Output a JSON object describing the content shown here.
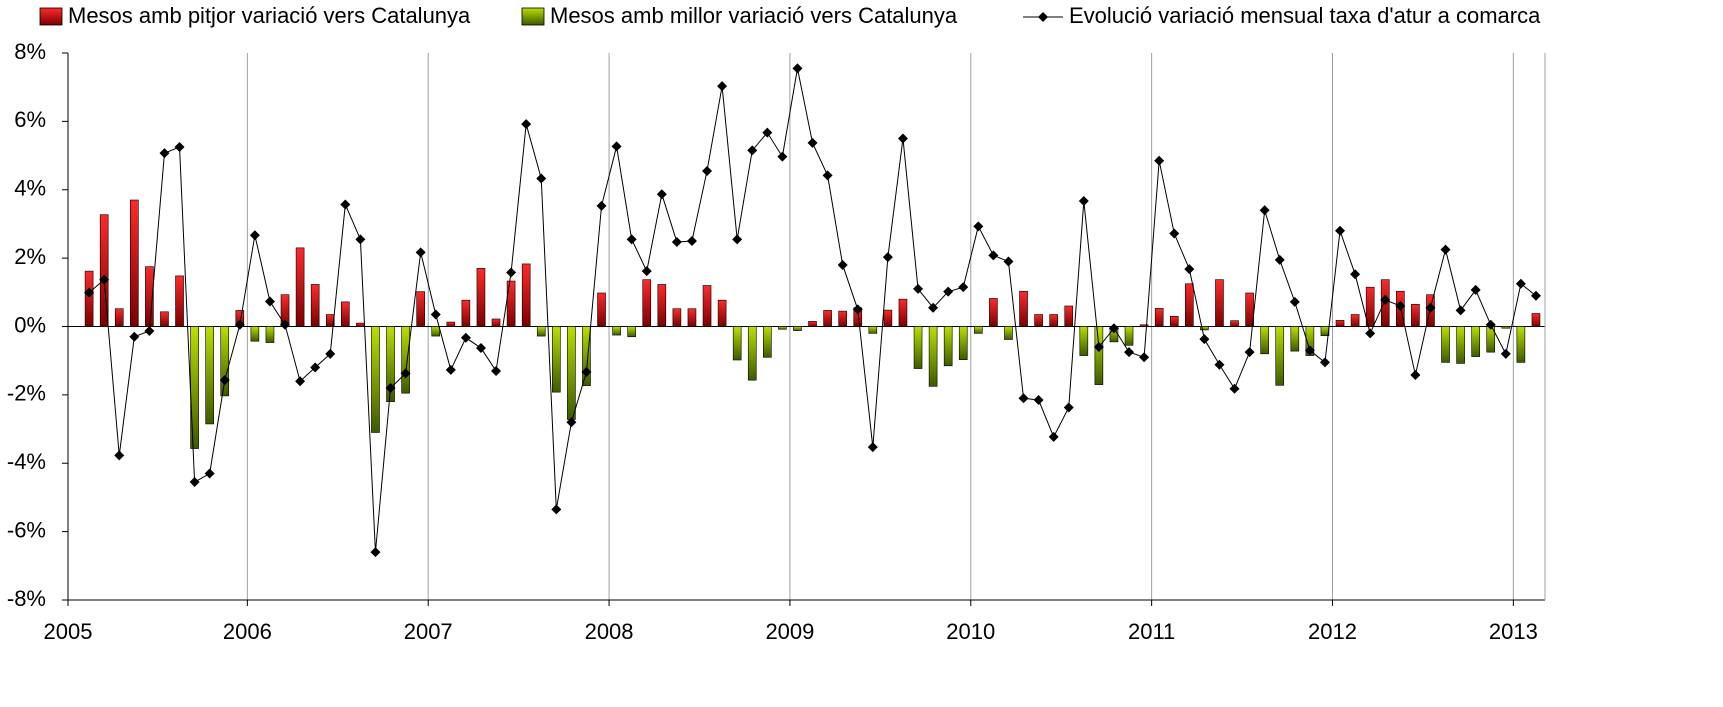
{
  "chart_data": {
    "type": "bar_line",
    "year_labels": [
      "2005",
      "2006",
      "2007",
      "2008",
      "2009",
      "2010",
      "2011",
      "2012",
      "2013"
    ],
    "ylim": [
      -8,
      8
    ],
    "yticks": [
      {
        "value": -8,
        "label": "-8%"
      },
      {
        "value": -6,
        "label": "-6%"
      },
      {
        "value": -4,
        "label": "-4%"
      },
      {
        "value": -2,
        "label": "-2%"
      },
      {
        "value": 0,
        "label": "0%"
      },
      {
        "value": 2,
        "label": "2%"
      },
      {
        "value": 4,
        "label": "4%"
      },
      {
        "value": 6,
        "label": "6%"
      },
      {
        "value": 8,
        "label": "8%"
      }
    ],
    "series": [
      {
        "name": "Mesos amb pitjor variació vers Catalunya",
        "type": "bar",
        "color": "#ff0000",
        "values": [
          1.62,
          3.27,
          0.52,
          3.7,
          1.75,
          0.43,
          1.48,
          null,
          null,
          null,
          0.47,
          null,
          null,
          0.93,
          2.3,
          1.23,
          0.35,
          0.72,
          0.1,
          null,
          null,
          null,
          1.02,
          null,
          0.13,
          0.77,
          1.7,
          0.22,
          1.33,
          1.83,
          null,
          null,
          null,
          null,
          0.98,
          null,
          null,
          1.37,
          1.23,
          0.52,
          0.52,
          1.2,
          0.77,
          null,
          null,
          null,
          null,
          null,
          0.15,
          0.47,
          0.45,
          0.55,
          null,
          0.48,
          0.8,
          null,
          null,
          null,
          null,
          null,
          0.82,
          null,
          1.03,
          0.35,
          0.35,
          0.6,
          null,
          null,
          null,
          null,
          0.05,
          0.53,
          0.3,
          1.25,
          null,
          1.37,
          0.17,
          0.98,
          null,
          null,
          null,
          null,
          null,
          0.18,
          0.35,
          1.15,
          1.37,
          1.03,
          0.65,
          0.93,
          null,
          null,
          null,
          null,
          null,
          null,
          0.38
        ]
      },
      {
        "name": "Mesos amb millor variació vers Catalunya",
        "type": "bar",
        "color": "#99cc00",
        "values": [
          null,
          null,
          null,
          null,
          null,
          null,
          null,
          -3.57,
          -2.85,
          -2.03,
          null,
          -0.43,
          -0.47,
          null,
          null,
          null,
          null,
          null,
          null,
          -3.1,
          -2.2,
          -1.95,
          null,
          -0.28,
          null,
          null,
          null,
          null,
          null,
          null,
          -0.28,
          -1.92,
          -2.72,
          -1.73,
          null,
          -0.25,
          -0.3,
          null,
          null,
          null,
          null,
          null,
          null,
          -0.98,
          -1.57,
          -0.9,
          -0.08,
          -0.12,
          null,
          null,
          null,
          null,
          -0.2,
          null,
          null,
          -1.23,
          -1.75,
          -1.15,
          -0.97,
          -0.2,
          null,
          -0.38,
          null,
          null,
          null,
          null,
          -0.85,
          -1.7,
          -0.45,
          -0.55,
          null,
          null,
          null,
          null,
          -0.1,
          null,
          null,
          null,
          -0.8,
          -1.72,
          -0.72,
          -0.85,
          -0.27,
          null,
          null,
          null,
          null,
          null,
          null,
          null,
          -1.05,
          -1.08,
          -0.88,
          -0.75,
          -0.05,
          -1.05,
          null
        ]
      },
      {
        "name": "Evolució variació mensual taxa d'atur a comarca",
        "type": "line",
        "color": "#000000",
        "values": [
          0.99,
          1.37,
          -3.77,
          -0.3,
          -0.13,
          5.07,
          5.25,
          -4.55,
          -4.3,
          -1.57,
          0.05,
          2.67,
          0.73,
          0.05,
          -1.6,
          -1.2,
          -0.8,
          3.57,
          2.55,
          -6.6,
          -1.8,
          -1.37,
          2.17,
          0.35,
          -1.27,
          -0.33,
          -0.63,
          -1.3,
          1.58,
          5.92,
          4.33,
          -5.35,
          -2.8,
          -1.33,
          3.53,
          5.27,
          2.55,
          1.62,
          3.87,
          2.47,
          2.5,
          4.55,
          7.03,
          2.55,
          5.15,
          5.67,
          4.97,
          7.55,
          5.37,
          4.42,
          1.8,
          0.5,
          -3.53,
          2.03,
          5.5,
          1.1,
          0.55,
          1.02,
          1.15,
          2.93,
          2.08,
          1.9,
          -2.1,
          -2.15,
          -3.23,
          -2.37,
          3.67,
          -0.6,
          -0.05,
          -0.75,
          -0.9,
          4.85,
          2.72,
          1.68,
          -0.37,
          -1.12,
          -1.82,
          -0.75,
          3.4,
          1.95,
          0.72,
          -0.7,
          -1.05,
          2.8,
          1.53,
          -0.2,
          0.78,
          0.6,
          -1.42,
          0.55,
          2.25,
          0.47,
          1.07,
          0.05,
          -0.8,
          1.25,
          0.9
        ]
      }
    ],
    "grid": true
  }
}
